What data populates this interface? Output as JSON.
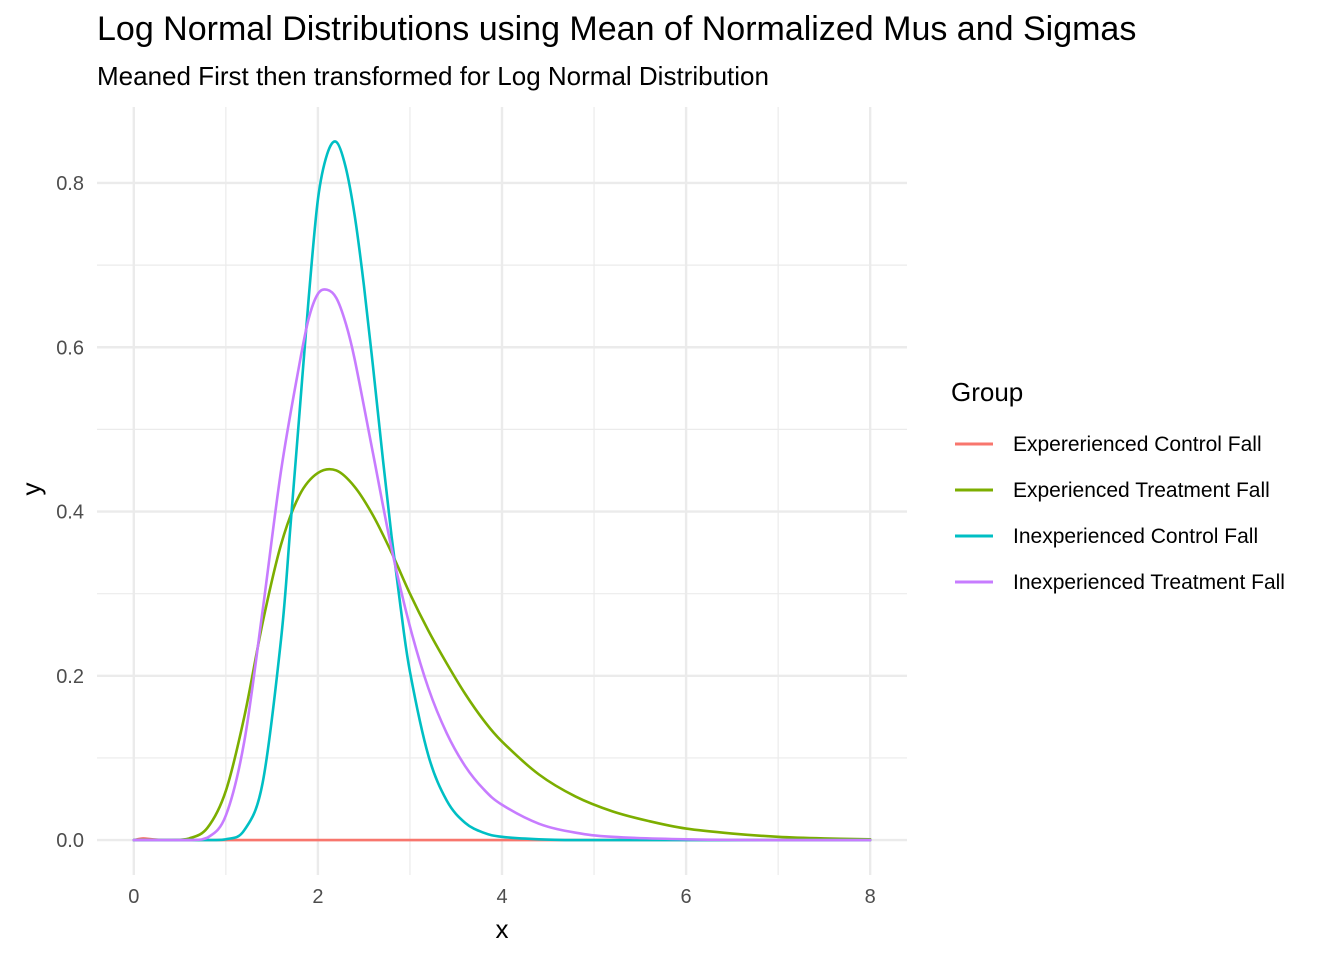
{
  "chart_data": {
    "type": "line",
    "title": "Log Normal Distributions using Mean of Normalized Mus and Sigmas",
    "subtitle": "Meaned First then transformed for Log Normal Distribution",
    "xlabel": "x",
    "ylabel": "y",
    "xlim": [
      -0.4,
      8.4
    ],
    "ylim": [
      -0.0425,
      0.8925
    ],
    "x_ticks": [
      0,
      2,
      4,
      6,
      8
    ],
    "x_tick_labels": [
      "0",
      "2",
      "4",
      "6",
      "8"
    ],
    "y_ticks": [
      0.0,
      0.2,
      0.4,
      0.6,
      0.8
    ],
    "y_tick_labels": [
      "0.0",
      "0.2",
      "0.4",
      "0.6",
      "0.8"
    ],
    "grid": true,
    "legend": {
      "title": "Group",
      "position": "right"
    },
    "series": [
      {
        "name": "Expererienced Control Fall",
        "color": "#F8766D",
        "x": [
          0,
          0.1,
          0.2,
          0.4,
          1,
          2,
          3,
          4,
          5,
          6,
          7,
          8
        ],
        "y": [
          0,
          0.002,
          0.001,
          0,
          0,
          0,
          0,
          0,
          0,
          0,
          0,
          0
        ]
      },
      {
        "name": "Experienced Treatment Fall",
        "color": "#7CAE00",
        "x": [
          0,
          0.4,
          0.6,
          0.8,
          1.0,
          1.2,
          1.4,
          1.6,
          1.8,
          2.0,
          2.2,
          2.4,
          2.6,
          2.8,
          3.0,
          3.2,
          3.4,
          3.6,
          3.8,
          4.0,
          4.4,
          4.8,
          5.2,
          5.6,
          6.0,
          6.5,
          7.0,
          7.5,
          8.0
        ],
        "y": [
          0,
          0,
          0.002,
          0.015,
          0.06,
          0.15,
          0.265,
          0.36,
          0.42,
          0.447,
          0.45,
          0.43,
          0.395,
          0.35,
          0.3,
          0.255,
          0.215,
          0.178,
          0.146,
          0.12,
          0.08,
          0.053,
          0.035,
          0.023,
          0.014,
          0.008,
          0.004,
          0.002,
          0.001
        ]
      },
      {
        "name": "Inexperienced Control Fall",
        "color": "#00BFC4",
        "x": [
          0,
          0.8,
          1.0,
          1.2,
          1.4,
          1.6,
          1.7,
          1.8,
          1.9,
          2.0,
          2.1,
          2.2,
          2.3,
          2.4,
          2.5,
          2.6,
          2.7,
          2.8,
          2.9,
          3.0,
          3.2,
          3.4,
          3.6,
          3.8,
          4.0,
          4.4,
          4.8,
          5.5,
          6.5,
          8.0
        ],
        "y": [
          0,
          0,
          0.001,
          0.012,
          0.07,
          0.245,
          0.38,
          0.52,
          0.66,
          0.78,
          0.835,
          0.85,
          0.82,
          0.76,
          0.675,
          0.575,
          0.47,
          0.37,
          0.282,
          0.205,
          0.103,
          0.048,
          0.021,
          0.009,
          0.004,
          0.001,
          0,
          0,
          0,
          0
        ]
      },
      {
        "name": "Inexperienced Treatment Fall",
        "color": "#C77CFF",
        "x": [
          0,
          0.6,
          0.8,
          1.0,
          1.2,
          1.4,
          1.6,
          1.8,
          1.9,
          2.0,
          2.1,
          2.2,
          2.3,
          2.4,
          2.6,
          2.8,
          3.0,
          3.2,
          3.4,
          3.6,
          3.8,
          4.0,
          4.4,
          4.8,
          5.2,
          6.0,
          7.0,
          8.0
        ],
        "y": [
          0,
          0,
          0.003,
          0.03,
          0.12,
          0.28,
          0.45,
          0.58,
          0.635,
          0.665,
          0.67,
          0.66,
          0.63,
          0.585,
          0.47,
          0.355,
          0.26,
          0.185,
          0.13,
          0.09,
          0.062,
          0.043,
          0.02,
          0.009,
          0.004,
          0.001,
          0,
          0
        ]
      }
    ]
  }
}
